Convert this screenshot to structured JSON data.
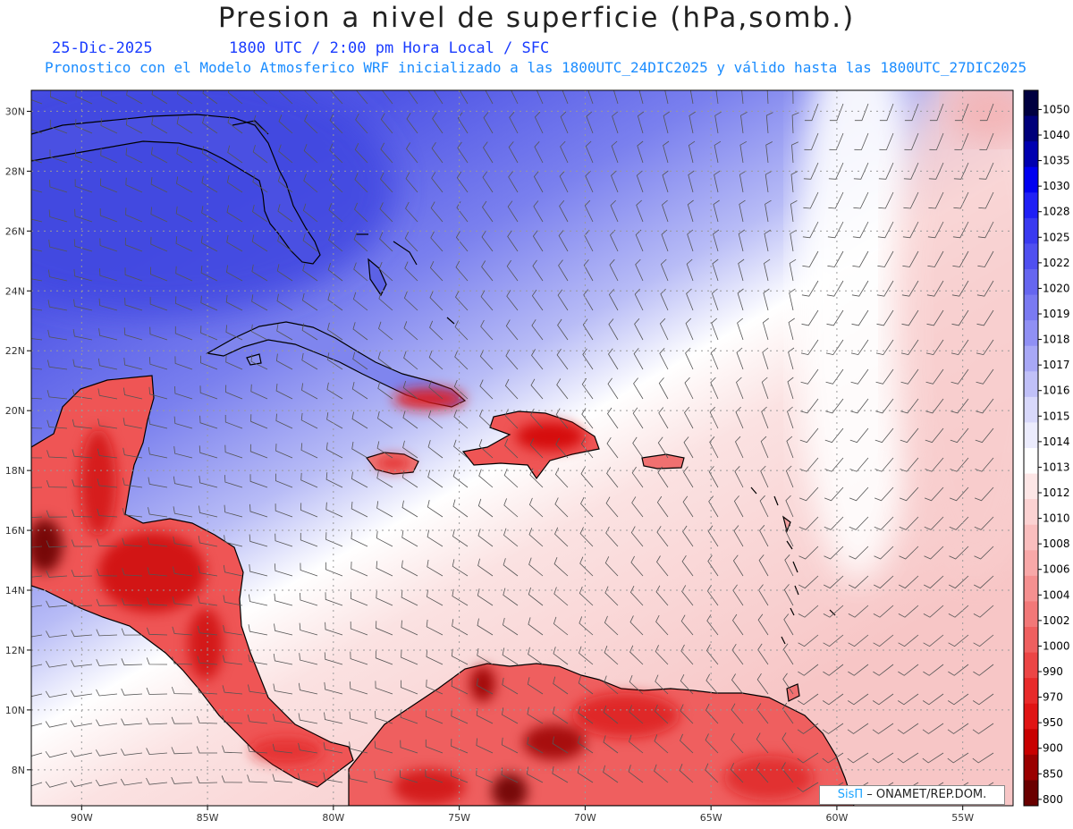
{
  "header": {
    "title": "Presion a nivel de superficie (hPa,somb.)",
    "date": "25-Dic-2025",
    "time": "1800 UTC / 2:00 pm Hora Local / SFC",
    "forecast": "Pronostico con el Modelo Atmosferico WRF inicializado a las 1800UTC_24DIC2025 y válido hasta las  1800UTC_27DIC2025"
  },
  "map": {
    "lat_labels": [
      "30N",
      "28N",
      "26N",
      "24N",
      "22N",
      "20N",
      "18N",
      "16N",
      "14N",
      "12N",
      "10N",
      "8N"
    ],
    "lat_values": [
      30,
      28,
      26,
      24,
      22,
      20,
      18,
      16,
      14,
      12,
      10,
      8
    ],
    "lon_labels": [
      "90W",
      "85W",
      "80W",
      "75W",
      "70W",
      "65W",
      "60W",
      "55W"
    ],
    "lon_values": [
      -90,
      -85,
      -80,
      -75,
      -70,
      -65,
      -60,
      -55
    ],
    "lon_range": [
      -92,
      -53
    ],
    "lat_range": [
      6.8,
      30.7
    ]
  },
  "colorbar": {
    "labels": [
      "1050",
      "1040",
      "1035",
      "1030",
      "1028",
      "1025",
      "1022",
      "1020",
      "1019",
      "1018",
      "1017",
      "1016",
      "1015",
      "1014",
      "1013",
      "1012",
      "1010",
      "1008",
      "1006",
      "1004",
      "1002",
      "1000",
      "990",
      "970",
      "950",
      "900",
      "850",
      "800"
    ],
    "colors": [
      "#000040",
      "#00007a",
      "#0000b0",
      "#0000f0",
      "#2020f5",
      "#3a3af0",
      "#5050f0",
      "#6666f0",
      "#7a7af2",
      "#9090f4",
      "#a8a8f6",
      "#c0c0f8",
      "#d8d8fb",
      "#ececfd",
      "#ffffff",
      "#fde6e6",
      "#fcd2d2",
      "#fabebe",
      "#f8a8a8",
      "#f59090",
      "#f27878",
      "#ef5f5f",
      "#ec4545",
      "#e82a2a",
      "#e01414",
      "#c80000",
      "#9a0000",
      "#6a0000"
    ]
  },
  "credit": {
    "brand": "SisΠ",
    "text": " – ONAMET/REP.DOM."
  }
}
